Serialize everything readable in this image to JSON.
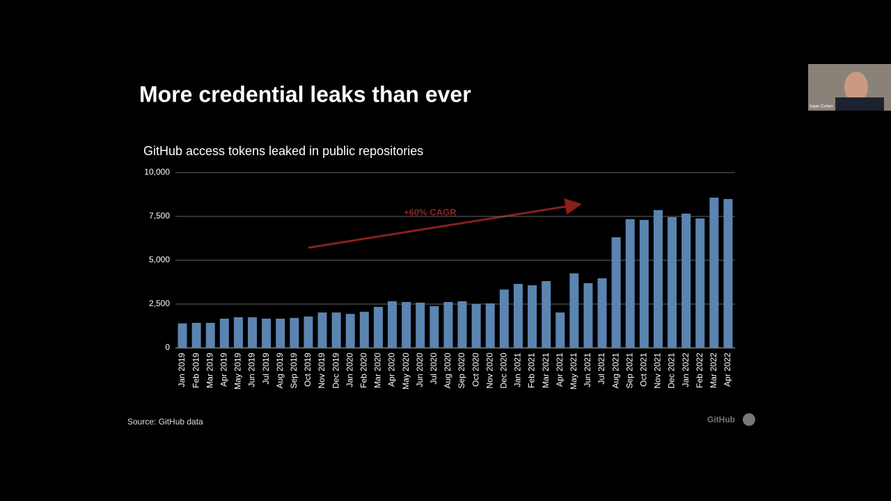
{
  "slide_title": "More credential leaks than ever",
  "source": "Source: GitHub data",
  "brand": "GitHub",
  "webcam_name": "Isaac Cohen",
  "chart_data": {
    "type": "bar",
    "title": "GitHub access tokens leaked in public repositories",
    "annotation": "+60% CAGR",
    "color": "#5b84b1",
    "categories": [
      "Jan 2019",
      "Feb 2019",
      "Mar 2019",
      "Apr 2019",
      "May 2019",
      "Jun 2019",
      "Jul 2019",
      "Aug 2019",
      "Sep 2019",
      "Oct 2019",
      "Nov 2019",
      "Dec 2019",
      "Jan 2020",
      "Feb 2020",
      "Mar 2020",
      "Apr 2020",
      "May 2020",
      "Jun 2020",
      "Jul 2020",
      "Aug 2020",
      "Sep 2020",
      "Oct 2020",
      "Nov 2020",
      "Dec 2020",
      "Jan 2021",
      "Feb 2021",
      "Mar 2021",
      "Apr 2021",
      "May 2021",
      "Jun 2021",
      "Jul 2021",
      "Aug 2021",
      "Sep 2021",
      "Oct 2021",
      "Nov 2021",
      "Dec 2021",
      "Jan 2022",
      "Feb 2022",
      "Mar 2022",
      "Apr 2022"
    ],
    "values": [
      1400,
      1430,
      1430,
      1670,
      1750,
      1750,
      1670,
      1670,
      1710,
      1790,
      2020,
      2020,
      1940,
      2060,
      2340,
      2660,
      2620,
      2580,
      2380,
      2620,
      2660,
      2500,
      2540,
      3330,
      3650,
      3570,
      3810,
      2020,
      4250,
      3690,
      3970,
      6310,
      7340,
      7300,
      7860,
      7460,
      7660,
      7380,
      8570,
      8490
    ],
    "ylim": [
      0,
      10000
    ],
    "yticks": [
      0,
      {
        "value": 2500,
        "label": "2,500"
      },
      {
        "value": 5000,
        "label": "5,000"
      },
      {
        "value": 7500,
        "label": "7,500"
      },
      {
        "value": 10000,
        "label": "10,000"
      }
    ],
    "grid": true
  }
}
